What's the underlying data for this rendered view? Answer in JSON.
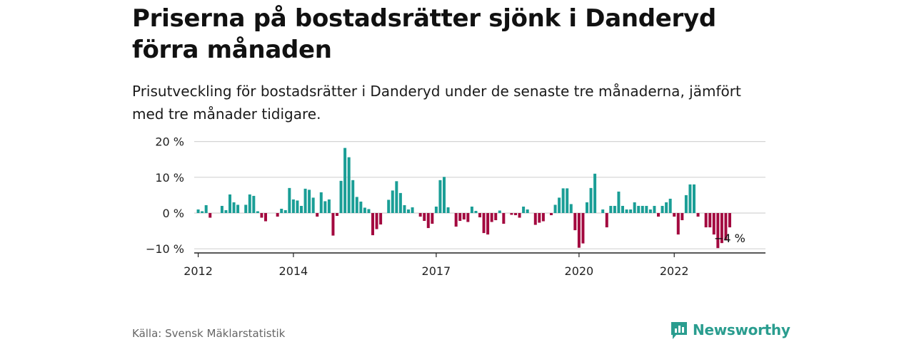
{
  "header": {
    "title": "Priserna på bostadsrätter sjönk i Danderyd förra månaden",
    "subtitle": "Prisutveckling för bostadsrätter i Danderyd under de senaste tre månaderna, jämfört med tre månader tidigare."
  },
  "footer": {
    "source": "Källa: Svensk Mäklarstatistik",
    "brand": "Newsworthy",
    "brand_icon": "newsworthy-logo-icon"
  },
  "colors": {
    "positive": "#1a9e96",
    "negative": "#a3093f",
    "grid": "#d4d4d4",
    "axis": "#222222",
    "brand": "#2a9d8f"
  },
  "chart_data": {
    "type": "bar",
    "ylabel": "",
    "xlabel": "",
    "ylim": [
      -11,
      20
    ],
    "grid": true,
    "y_ticks": [
      20,
      10,
      0,
      -10
    ],
    "y_tick_labels": [
      "20 %",
      "10 %",
      "0 %",
      "−10 %"
    ],
    "x_ticks": [
      "2012",
      "2014",
      "2017",
      "2020",
      "2022"
    ],
    "x_tick_months": [
      "2012-01",
      "2014-01",
      "2017-01",
      "2020-01",
      "2022-01"
    ],
    "x_range": [
      "2011-12",
      "2023-12"
    ],
    "start_month": "2012-01",
    "values": [
      1,
      0.5,
      2.2,
      -1.3,
      0,
      0,
      2,
      0.8,
      5.2,
      3,
      2.3,
      0,
      2.3,
      5.2,
      4.8,
      0.5,
      -1.3,
      -2.3,
      0,
      0,
      -1,
      1.2,
      0.8,
      7,
      3.8,
      3.5,
      2,
      6.8,
      6.5,
      4.3,
      -1,
      5.8,
      3.3,
      3.8,
      -6.3,
      -0.8,
      9,
      18.2,
      15.6,
      9.2,
      4.5,
      3.2,
      1.5,
      1.1,
      -6.2,
      -4.5,
      -3.2,
      0,
      3.7,
      6.3,
      8.9,
      5.6,
      2.2,
      1,
      1.6,
      0,
      -1,
      -2.2,
      -4.2,
      -3,
      1.8,
      9.2,
      10.1,
      1.6,
      0,
      -3.8,
      -2.2,
      -1.8,
      -2.5,
      1.8,
      0.6,
      -1.2,
      -5.6,
      -6,
      -2.5,
      -2,
      0.7,
      -3,
      0,
      -0.5,
      -0.6,
      -1.3,
      1.8,
      1,
      0,
      -3.3,
      -2.7,
      -2.3,
      0,
      -0.6,
      2.3,
      4.3,
      6.9,
      6.9,
      2.5,
      -4.8,
      -9.7,
      -8.5,
      3,
      7,
      11,
      0,
      1,
      -4,
      2,
      2,
      6,
      2,
      1,
      1,
      3,
      2,
      2,
      2,
      1,
      2,
      -1,
      2,
      3,
      4,
      -1,
      -6,
      -2,
      5,
      8,
      8,
      -1,
      0,
      -4,
      -4,
      -6,
      -9.8,
      -8.4,
      -7.4,
      -4
    ],
    "annotations": [
      {
        "text": "−4 %",
        "anchor": "last"
      }
    ]
  }
}
